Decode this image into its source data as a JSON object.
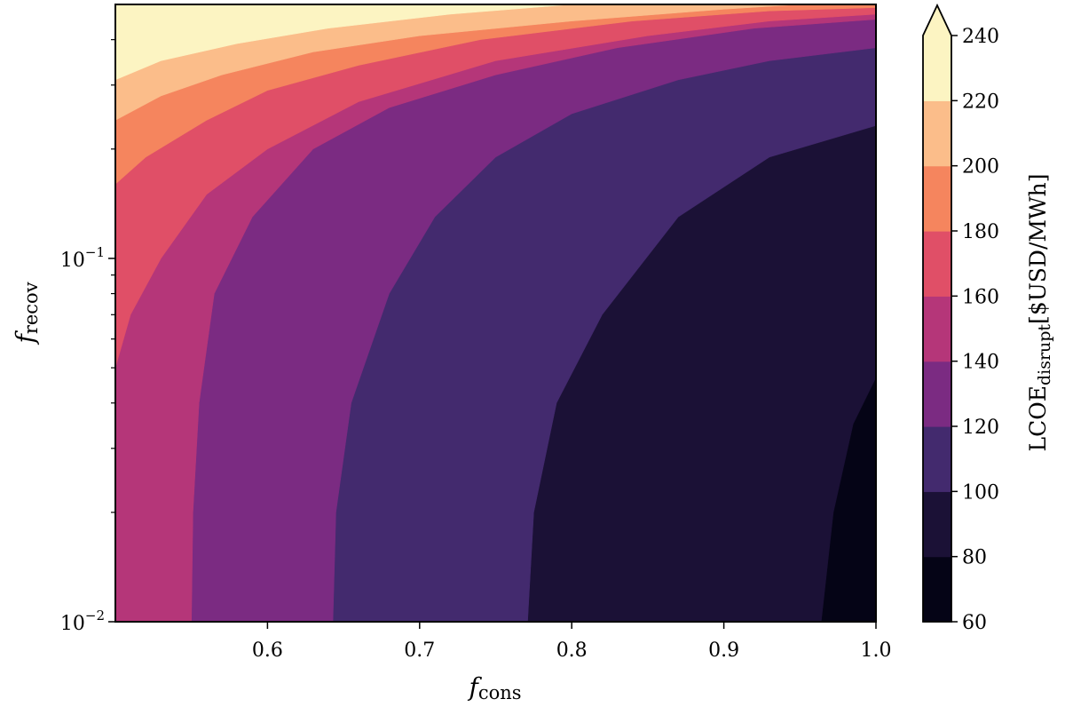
{
  "chart_data": {
    "type": "contour",
    "x": {
      "variable": "f",
      "subscript": "cons",
      "range": [
        0.5,
        1.0
      ],
      "ticks": [
        0.6,
        0.7,
        0.8,
        0.9,
        1.0
      ],
      "tick_labels": [
        "0.6",
        "0.7",
        "0.8",
        "0.9",
        "1.0"
      ],
      "scale": "linear"
    },
    "y": {
      "variable": "f",
      "subscript": "recov",
      "range": [
        0.01,
        0.5
      ],
      "scale": "log",
      "ticks": [
        0.01,
        0.1
      ],
      "tick_labels": [
        {
          "base": "10",
          "exponent": "−2"
        },
        {
          "base": "10",
          "exponent": "−1"
        }
      ],
      "minor_ticks": [
        0.02,
        0.03,
        0.04,
        0.05,
        0.06,
        0.07,
        0.08,
        0.09,
        0.2,
        0.3,
        0.4
      ]
    },
    "colorbar": {
      "label_main": "LCOE",
      "label_sub": "disrupt",
      "label_unit": "[$USD/MWh]",
      "levels": [
        60,
        80,
        100,
        120,
        140,
        160,
        180,
        200,
        220,
        240
      ],
      "level_labels": [
        "60",
        "80",
        "100",
        "120",
        "140",
        "160",
        "180",
        "200",
        "220",
        "240"
      ],
      "colors": [
        "#050416",
        "#1b1136",
        "#432a6e",
        "#7b2b82",
        "#b53679",
        "#e04f67",
        "#f5855e",
        "#fbbd8a",
        "#fcf4c2"
      ],
      "extend": "max",
      "colormap": "magma"
    },
    "contours": [
      {
        "level": 80,
        "points": [
          [
            0.964,
            0.01
          ],
          [
            0.972,
            0.02
          ],
          [
            0.985,
            0.035
          ],
          [
            1.0,
            0.047
          ]
        ]
      },
      {
        "level": 100,
        "points": [
          [
            0.771,
            0.01
          ],
          [
            0.775,
            0.02
          ],
          [
            0.79,
            0.04
          ],
          [
            0.82,
            0.07
          ],
          [
            0.87,
            0.13
          ],
          [
            0.93,
            0.19
          ],
          [
            1.0,
            0.232
          ]
        ]
      },
      {
        "level": 120,
        "points": [
          [
            0.643,
            0.01
          ],
          [
            0.645,
            0.02
          ],
          [
            0.655,
            0.04
          ],
          [
            0.68,
            0.08
          ],
          [
            0.71,
            0.13
          ],
          [
            0.75,
            0.19
          ],
          [
            0.8,
            0.25
          ],
          [
            0.87,
            0.31
          ],
          [
            0.93,
            0.35
          ],
          [
            1.0,
            0.38
          ]
        ]
      },
      {
        "level": 140,
        "points": [
          [
            0.55,
            0.01
          ],
          [
            0.551,
            0.02
          ],
          [
            0.555,
            0.04
          ],
          [
            0.565,
            0.08
          ],
          [
            0.59,
            0.13
          ],
          [
            0.63,
            0.2
          ],
          [
            0.68,
            0.26
          ],
          [
            0.75,
            0.32
          ],
          [
            0.83,
            0.38
          ],
          [
            0.92,
            0.43
          ],
          [
            1.0,
            0.455
          ]
        ]
      },
      {
        "level": 160,
        "points": [
          [
            0.5,
            0.05
          ],
          [
            0.51,
            0.07
          ],
          [
            0.53,
            0.1
          ],
          [
            0.56,
            0.15
          ],
          [
            0.6,
            0.2
          ],
          [
            0.66,
            0.27
          ],
          [
            0.75,
            0.35
          ],
          [
            0.85,
            0.41
          ],
          [
            0.93,
            0.45
          ],
          [
            1.0,
            0.47
          ]
        ]
      },
      {
        "level": 180,
        "points": [
          [
            0.5,
            0.16
          ],
          [
            0.52,
            0.19
          ],
          [
            0.56,
            0.24
          ],
          [
            0.6,
            0.29
          ],
          [
            0.66,
            0.34
          ],
          [
            0.74,
            0.4
          ],
          [
            0.84,
            0.45
          ],
          [
            0.93,
            0.48
          ],
          [
            1.0,
            0.49
          ]
        ]
      },
      {
        "level": 200,
        "points": [
          [
            0.5,
            0.24
          ],
          [
            0.53,
            0.28
          ],
          [
            0.57,
            0.32
          ],
          [
            0.63,
            0.37
          ],
          [
            0.7,
            0.41
          ],
          [
            0.8,
            0.45
          ],
          [
            0.9,
            0.485
          ],
          [
            0.95,
            0.5
          ]
        ]
      },
      {
        "level": 220,
        "points": [
          [
            0.5,
            0.31
          ],
          [
            0.53,
            0.35
          ],
          [
            0.58,
            0.39
          ],
          [
            0.64,
            0.43
          ],
          [
            0.72,
            0.47
          ],
          [
            0.8,
            0.5
          ]
        ]
      }
    ]
  }
}
